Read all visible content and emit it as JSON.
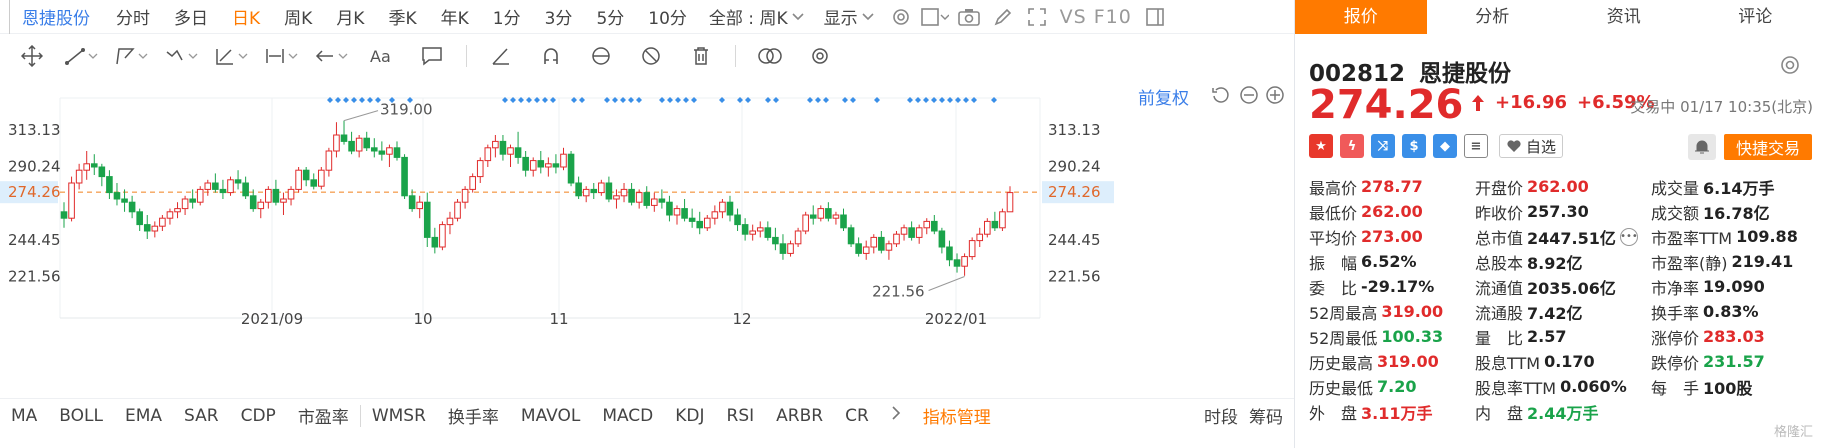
{
  "timebar": {
    "stock_name": "恩捷股份",
    "tabs": [
      "分时",
      "多日",
      "日K",
      "周K",
      "月K",
      "季K",
      "年K",
      "1分",
      "3分",
      "5分",
      "10分"
    ],
    "active_tab": "日K",
    "period_select": "全部 : 周K",
    "display_select": "显示",
    "vs_label": "VS F10"
  },
  "chart_header": {
    "adjust_label": "前复权"
  },
  "chart_data": {
    "type": "candlestick",
    "title": "",
    "y_ticks": [
      313.13,
      290.24,
      274.26,
      244.45,
      221.56
    ],
    "right_ticks": [
      "313.13",
      "290.24",
      "274.26",
      "244.45",
      "221.56"
    ],
    "left_ticks": [
      "313.13",
      "290.24",
      "274.26",
      "244.45",
      "221.56"
    ],
    "x_ticks": [
      "2021/09",
      "10",
      "11",
      "12",
      "2022/01"
    ],
    "ylim": [
      205,
      330
    ],
    "current_price": 274.26,
    "high_label": "319.00",
    "low_label": "221.56",
    "high_value": 319.0,
    "low_value": 221.56,
    "candles": [
      [
        262,
        268,
        252,
        258
      ],
      [
        258,
        284,
        256,
        280
      ],
      [
        280,
        292,
        276,
        288
      ],
      [
        288,
        300,
        282,
        292
      ],
      [
        292,
        298,
        285,
        290
      ],
      [
        290,
        292,
        278,
        284
      ],
      [
        284,
        288,
        270,
        274
      ],
      [
        274,
        280,
        266,
        270
      ],
      [
        270,
        276,
        262,
        268
      ],
      [
        268,
        272,
        258,
        262
      ],
      [
        262,
        264,
        250,
        254
      ],
      [
        254,
        260,
        245,
        250
      ],
      [
        250,
        256,
        246,
        253
      ],
      [
        253,
        260,
        250,
        258
      ],
      [
        258,
        264,
        254,
        262
      ],
      [
        262,
        268,
        258,
        264
      ],
      [
        264,
        272,
        260,
        270
      ],
      [
        270,
        276,
        264,
        268
      ],
      [
        268,
        278,
        266,
        276
      ],
      [
        276,
        282,
        272,
        280
      ],
      [
        280,
        286,
        274,
        276
      ],
      [
        276,
        282,
        270,
        274
      ],
      [
        274,
        284,
        272,
        282
      ],
      [
        282,
        288,
        276,
        280
      ],
      [
        280,
        284,
        270,
        272
      ],
      [
        272,
        276,
        262,
        264
      ],
      [
        264,
        270,
        258,
        268
      ],
      [
        268,
        278,
        264,
        276
      ],
      [
        276,
        282,
        266,
        268
      ],
      [
        268,
        274,
        260,
        270
      ],
      [
        270,
        278,
        266,
        276
      ],
      [
        276,
        290,
        274,
        288
      ],
      [
        288,
        290,
        278,
        282
      ],
      [
        282,
        286,
        276,
        278
      ],
      [
        278,
        290,
        276,
        288
      ],
      [
        288,
        302,
        284,
        300
      ],
      [
        300,
        318,
        296,
        310
      ],
      [
        310,
        319,
        304,
        306
      ],
      [
        306,
        312,
        298,
        300
      ],
      [
        300,
        310,
        296,
        308
      ],
      [
        308,
        312,
        300,
        302
      ],
      [
        302,
        308,
        296,
        300
      ],
      [
        300,
        306,
        294,
        298
      ],
      [
        298,
        304,
        290,
        302
      ],
      [
        302,
        306,
        294,
        296
      ],
      [
        296,
        298,
        270,
        272
      ],
      [
        272,
        276,
        262,
        264
      ],
      [
        264,
        272,
        258,
        268
      ],
      [
        268,
        274,
        240,
        246
      ],
      [
        246,
        252,
        236,
        240
      ],
      [
        240,
        256,
        238,
        254
      ],
      [
        254,
        262,
        248,
        258
      ],
      [
        258,
        270,
        256,
        268
      ],
      [
        268,
        278,
        264,
        276
      ],
      [
        276,
        286,
        274,
        284
      ],
      [
        284,
        296,
        280,
        294
      ],
      [
        294,
        304,
        290,
        302
      ],
      [
        302,
        310,
        296,
        306
      ],
      [
        306,
        310,
        294,
        298
      ],
      [
        298,
        304,
        290,
        302
      ],
      [
        302,
        312,
        292,
        296
      ],
      [
        296,
        300,
        284,
        288
      ],
      [
        288,
        296,
        284,
        294
      ],
      [
        294,
        300,
        286,
        290
      ],
      [
        290,
        296,
        284,
        292
      ],
      [
        292,
        298,
        286,
        290
      ],
      [
        290,
        302,
        288,
        298
      ],
      [
        298,
        300,
        278,
        280
      ],
      [
        280,
        284,
        270,
        272
      ],
      [
        272,
        278,
        268,
        276
      ],
      [
        276,
        280,
        270,
        274
      ],
      [
        274,
        282,
        272,
        280
      ],
      [
        280,
        284,
        268,
        270
      ],
      [
        270,
        276,
        264,
        272
      ],
      [
        272,
        280,
        268,
        276
      ],
      [
        276,
        280,
        266,
        268
      ],
      [
        268,
        276,
        264,
        274
      ],
      [
        274,
        278,
        264,
        266
      ],
      [
        266,
        274,
        262,
        270
      ],
      [
        270,
        276,
        264,
        268
      ],
      [
        268,
        272,
        256,
        260
      ],
      [
        260,
        266,
        254,
        264
      ],
      [
        264,
        270,
        256,
        258
      ],
      [
        258,
        264,
        252,
        256
      ],
      [
        256,
        262,
        248,
        252
      ],
      [
        252,
        260,
        250,
        258
      ],
      [
        258,
        266,
        254,
        262
      ],
      [
        262,
        270,
        258,
        268
      ],
      [
        268,
        272,
        256,
        260
      ],
      [
        260,
        264,
        250,
        254
      ],
      [
        254,
        258,
        244,
        248
      ],
      [
        248,
        254,
        244,
        250
      ],
      [
        250,
        256,
        246,
        252
      ],
      [
        252,
        256,
        244,
        246
      ],
      [
        246,
        252,
        238,
        242
      ],
      [
        242,
        248,
        232,
        236
      ],
      [
        236,
        244,
        234,
        242
      ],
      [
        242,
        252,
        240,
        250
      ],
      [
        250,
        262,
        248,
        260
      ],
      [
        260,
        266,
        254,
        258
      ],
      [
        258,
        266,
        256,
        264
      ],
      [
        264,
        268,
        256,
        258
      ],
      [
        258,
        262,
        254,
        260
      ],
      [
        260,
        264,
        250,
        252
      ],
      [
        252,
        254,
        240,
        242
      ],
      [
        242,
        246,
        234,
        236
      ],
      [
        236,
        244,
        232,
        240
      ],
      [
        240,
        248,
        236,
        246
      ],
      [
        246,
        250,
        236,
        238
      ],
      [
        238,
        244,
        232,
        242
      ],
      [
        242,
        250,
        240,
        248
      ],
      [
        248,
        254,
        244,
        252
      ],
      [
        252,
        256,
        244,
        246
      ],
      [
        246,
        254,
        242,
        252
      ],
      [
        252,
        258,
        248,
        256
      ],
      [
        256,
        260,
        248,
        250
      ],
      [
        250,
        252,
        236,
        240
      ],
      [
        240,
        244,
        228,
        232
      ],
      [
        232,
        236,
        224,
        228
      ],
      [
        228,
        236,
        222,
        234
      ],
      [
        234,
        246,
        232,
        244
      ],
      [
        244,
        252,
        240,
        248
      ],
      [
        248,
        258,
        246,
        256
      ],
      [
        256,
        262,
        250,
        252
      ],
      [
        252,
        264,
        250,
        262
      ],
      [
        262,
        278,
        262,
        274
      ]
    ],
    "marker_groups": [
      [
        330,
        385
      ],
      [
        392,
        392
      ],
      [
        410,
        410
      ],
      [
        505,
        560
      ],
      [
        574,
        588
      ],
      [
        607,
        640
      ],
      [
        662,
        700
      ],
      [
        722,
        722
      ],
      [
        740,
        752
      ],
      [
        768,
        778
      ],
      [
        810,
        830
      ],
      [
        845,
        857
      ],
      [
        877,
        877
      ],
      [
        910,
        980
      ],
      [
        994,
        994
      ]
    ]
  },
  "indicators": {
    "items": [
      "MA",
      "BOLL",
      "EMA",
      "SAR",
      "CDP",
      "市盈率",
      "WMSR",
      "换手率",
      "MAVOL",
      "MACD",
      "KDJ",
      "RSI",
      "ARBR",
      "CR"
    ],
    "manage": "指标管理",
    "right": [
      "时段",
      "筹码"
    ]
  },
  "right_tabs": [
    "报价",
    "分析",
    "资讯",
    "评论"
  ],
  "quote": {
    "code": "002812",
    "name": "恩捷股份",
    "price": "274.26",
    "change": "+16.96",
    "change_pct": "+6.59%",
    "status": "交易中 01/17 10:35(北京)",
    "watch_label": "自选",
    "trade_label": "快捷交易"
  },
  "colors": {
    "up": "#e02b2b",
    "down": "#1aa34a",
    "accent": "#ff7a00",
    "link": "#3a7ee8"
  },
  "stats": [
    [
      {
        "l": "最高价",
        "v": "278.77",
        "c": "up"
      },
      {
        "l": "开盘价",
        "v": "262.00",
        "c": "up"
      },
      {
        "l": "成交量",
        "v": "6.14万手",
        "c": "nt"
      }
    ],
    [
      {
        "l": "最低价",
        "v": "262.00",
        "c": "up"
      },
      {
        "l": "昨收价",
        "v": "257.30",
        "c": "nt"
      },
      {
        "l": "成交额",
        "v": "16.78亿",
        "c": "nt"
      }
    ],
    [
      {
        "l": "平均价",
        "v": "273.00",
        "c": "up"
      },
      {
        "l": "总市值",
        "v": "2447.51亿",
        "c": "nt",
        "more": true
      },
      {
        "l": "市盈率TTM",
        "v": "109.88",
        "c": "nt"
      }
    ],
    [
      {
        "l": "振　幅",
        "v": "6.52%",
        "c": "nt"
      },
      {
        "l": "总股本",
        "v": "8.92亿",
        "c": "nt"
      },
      {
        "l": "市盈率(静)",
        "v": "219.41",
        "c": "nt"
      }
    ],
    [
      {
        "l": "委　比",
        "v": "-29.17%",
        "c": "nt"
      },
      {
        "l": "流通值",
        "v": "2035.06亿",
        "c": "nt"
      },
      {
        "l": "市净率",
        "v": "19.090",
        "c": "nt"
      }
    ],
    [
      {
        "l": "52周最高",
        "v": "319.00",
        "c": "up"
      },
      {
        "l": "流通股",
        "v": "7.42亿",
        "c": "nt"
      },
      {
        "l": "换手率",
        "v": "0.83%",
        "c": "nt"
      }
    ],
    [
      {
        "l": "52周最低",
        "v": "100.33",
        "c": "dn"
      },
      {
        "l": "量　比",
        "v": "2.57",
        "c": "nt"
      },
      {
        "l": "涨停价",
        "v": "283.03",
        "c": "up"
      }
    ],
    [
      {
        "l": "历史最高",
        "v": "319.00",
        "c": "up"
      },
      {
        "l": "股息TTM",
        "v": "0.170",
        "c": "nt"
      },
      {
        "l": "跌停价",
        "v": "231.57",
        "c": "dn"
      }
    ],
    [
      {
        "l": "历史最低",
        "v": "7.20",
        "c": "dn"
      },
      {
        "l": "股息率TTM",
        "v": "0.060%",
        "c": "nt"
      },
      {
        "l": "每　手",
        "v": "100股",
        "c": "nt"
      }
    ],
    [
      {
        "l": "外　盘",
        "v": "3.11万手",
        "c": "up"
      },
      {
        "l": "内　盘",
        "v": "2.44万手",
        "c": "dn"
      },
      {
        "l": "",
        "v": "",
        "c": "nt"
      }
    ]
  ],
  "watermark": "格隆汇"
}
